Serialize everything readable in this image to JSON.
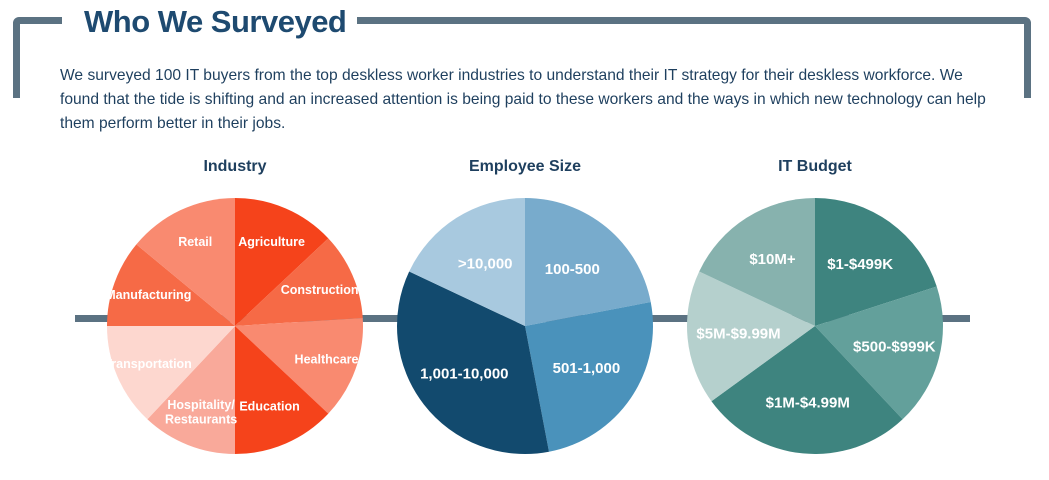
{
  "header": {
    "title": "Who We Surveyed",
    "intro": "We surveyed 100 IT buyers from the top deskless worker industries to understand their IT strategy for their deskless workforce. We found that the tide is shifting and an increased attention is being paid to these workers and the ways in which new technology can help them perform better in their jobs."
  },
  "chart_data": [
    {
      "type": "pie",
      "title": "Industry",
      "categories": [
        "Agriculture",
        "Construction",
        "Healthcare",
        "Education",
        "Hospitality/ Restaurants",
        "Transportation",
        "Manufacturing",
        "Retail"
      ],
      "values": [
        13,
        11,
        13,
        13,
        12,
        13,
        11,
        14
      ],
      "colors": [
        "#f5431b",
        "#f66a46",
        "#f98a70",
        "#f5431b",
        "#f9a99a",
        "#fdd7cf",
        "#f66a46",
        "#f98a70"
      ]
    },
    {
      "type": "pie",
      "title": "Employee Size",
      "categories": [
        "100-500",
        "501-1,000",
        "1,001-10,000",
        ">10,000"
      ],
      "values": [
        22,
        25,
        35,
        18
      ],
      "colors": [
        "#78abcc",
        "#4a92bb",
        "#124a6e",
        "#a8c9df"
      ]
    },
    {
      "type": "pie",
      "title": "IT Budget",
      "categories": [
        "$1-$499K",
        "$500-$999K",
        "$1M-$4.99M",
        "$5M-$9.99M",
        "$10M+"
      ],
      "values": [
        20,
        18,
        27,
        17,
        18
      ],
      "colors": [
        "#3e847f",
        "#63a09b",
        "#3e847f",
        "#b5d0cd",
        "#87b2ae"
      ]
    }
  ]
}
